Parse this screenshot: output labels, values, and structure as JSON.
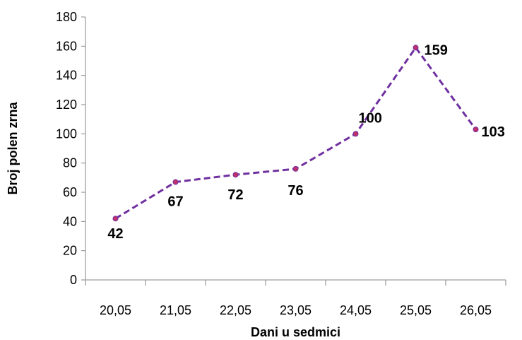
{
  "chart_data": {
    "type": "line",
    "title": "",
    "xlabel": "Dani u sedmici",
    "ylabel": "Broj polen zrna",
    "categories": [
      "20,05",
      "21,05",
      "22,05",
      "23,05",
      "24,05",
      "25,05",
      "26,05"
    ],
    "series": [
      {
        "values": [
          42,
          67,
          72,
          76,
          100,
          159,
          103
        ],
        "data_labels": [
          "42",
          "67",
          "72",
          "76",
          "100",
          "159",
          "103"
        ],
        "color": "#7030A0",
        "marker_color": "#C0306A",
        "line_style": "dashed"
      }
    ],
    "ylim": [
      0,
      180
    ],
    "yticks": [
      "0",
      "20",
      "40",
      "60",
      "80",
      "100",
      "120",
      "140",
      "160",
      "180"
    ],
    "grid": false,
    "legend": "none",
    "axis_color": "#868686"
  }
}
